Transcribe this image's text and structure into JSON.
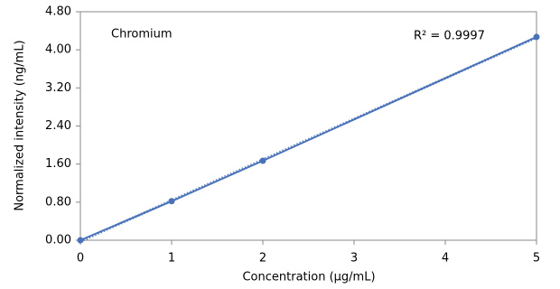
{
  "chart_data": {
    "type": "line",
    "x_label": "Concentration (µg/mL)",
    "y_label": "Normalized intensity (ng/mL)",
    "annotations": [
      "Chromium",
      "R² = 0.9997"
    ],
    "x": [
      0,
      1,
      2,
      5
    ],
    "series": [
      {
        "color": "#4a72b8",
        "values": [
          0,
          0.82,
          1.67,
          4.27
        ]
      }
    ],
    "trendline": "linear",
    "xlim": [
      0,
      5
    ],
    "xticks": [
      0,
      1,
      2,
      3,
      4,
      5
    ],
    "ylim": [
      0,
      4.8
    ],
    "yticks": [
      {
        "value": 0,
        "label": "0.00"
      },
      {
        "value": 0.8,
        "label": "0.80"
      },
      {
        "value": 1.6,
        "label": "1.60"
      },
      {
        "value": 2.4,
        "label": "2.40"
      },
      {
        "value": 3.2,
        "label": "3.20"
      },
      {
        "value": 4,
        "label": "4.00"
      },
      {
        "value": 4.8,
        "label": "4.80"
      }
    ],
    "grid": false
  }
}
